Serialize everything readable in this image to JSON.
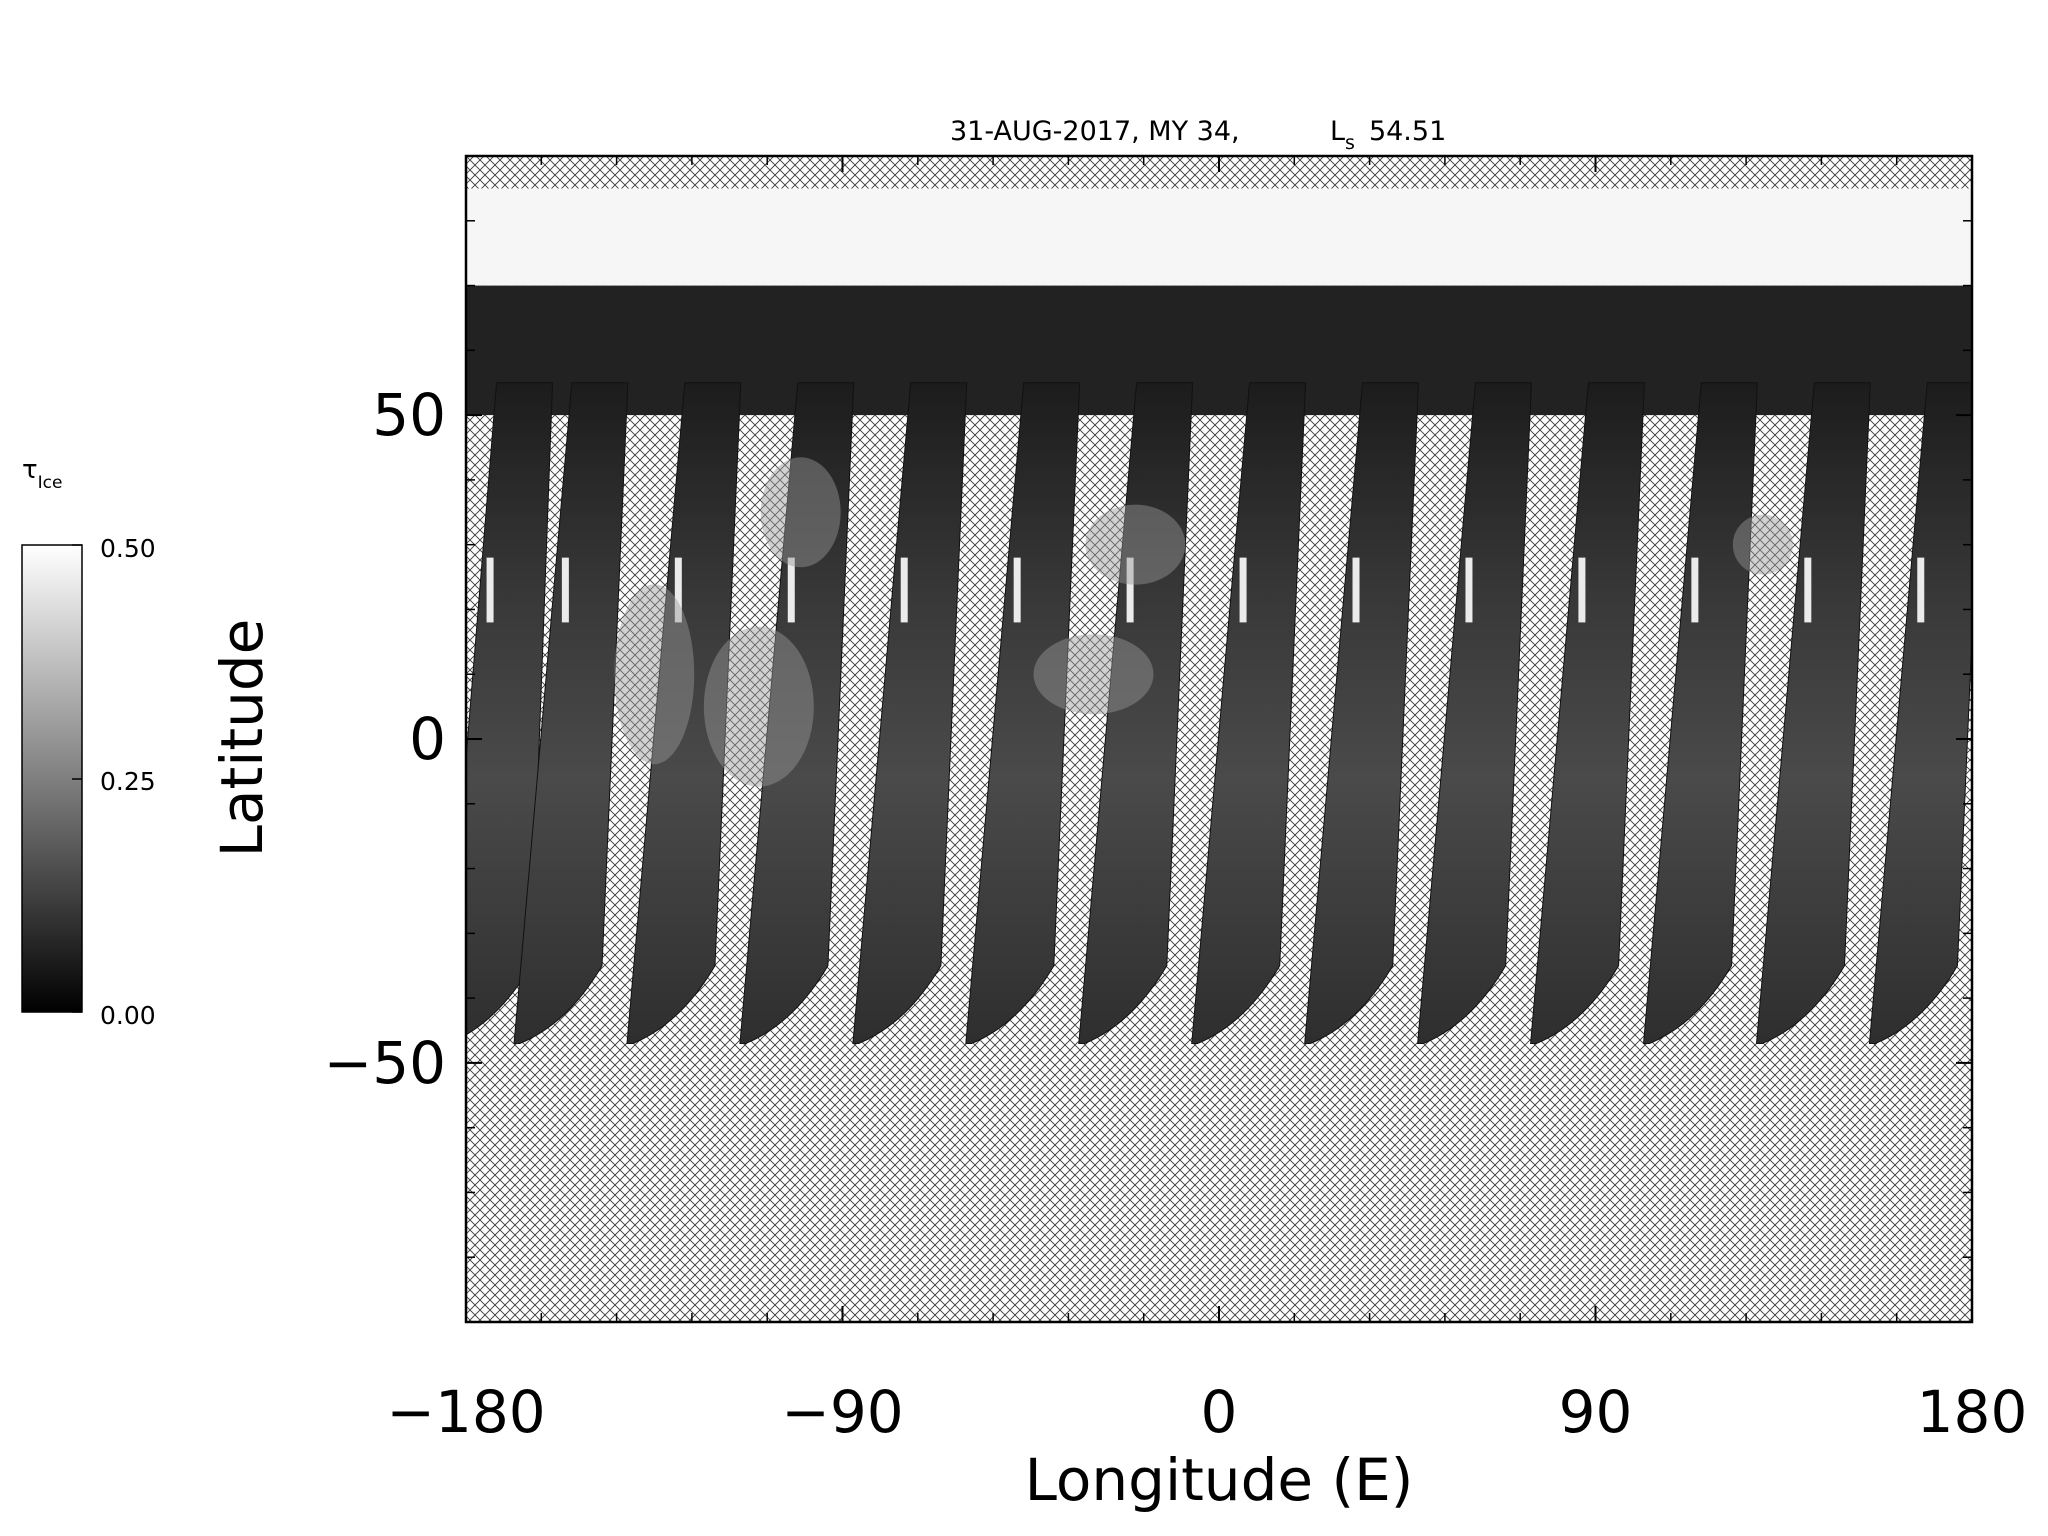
{
  "chart_data": {
    "type": "heatmap",
    "title": "31-AUG-2017, MY 34,",
    "title_ls_main": "L",
    "title_ls_sub": "s",
    "title_ls_value": "54.51",
    "xlabel": "Longitude (E)",
    "ylabel": "Latitude",
    "xlim": [
      -180,
      180
    ],
    "ylim": [
      -90,
      90
    ],
    "x_ticks": [
      -180,
      -90,
      0,
      90,
      180
    ],
    "x_tick_labels": [
      "−180",
      "−90",
      "0",
      "90",
      "180"
    ],
    "y_ticks": [
      50,
      0,
      -50
    ],
    "y_tick_labels": [
      "50",
      "0",
      "−50"
    ],
    "colorbar": {
      "label_main": "τ",
      "label_sub": "Ice",
      "range": [
        0.0,
        0.5
      ],
      "ticks": [
        "0.50",
        "0.25",
        "0.00"
      ],
      "colormap": "grayscale"
    },
    "grid": false,
    "swaths": [
      {
        "lon_north": -166,
        "lon_south": -175
      },
      {
        "lon_north": -148,
        "lon_south": -158
      },
      {
        "lon_north": -121,
        "lon_south": -131
      },
      {
        "lon_north": -94,
        "lon_south": -104
      },
      {
        "lon_north": -67,
        "lon_south": -77
      },
      {
        "lon_north": -40,
        "lon_south": -50
      },
      {
        "lon_north": -13,
        "lon_south": -23
      },
      {
        "lon_north": 14,
        "lon_south": 4
      },
      {
        "lon_north": 41,
        "lon_south": 31
      },
      {
        "lon_north": 68,
        "lon_south": 58
      },
      {
        "lon_north": 95,
        "lon_south": 85
      },
      {
        "lon_north": 122,
        "lon_south": 112
      },
      {
        "lon_north": 149,
        "lon_south": 139
      },
      {
        "lon_north": 176,
        "lon_south": 166
      }
    ],
    "polar_cap_lat_min": 70,
    "no_data_lat_max": 85
  }
}
